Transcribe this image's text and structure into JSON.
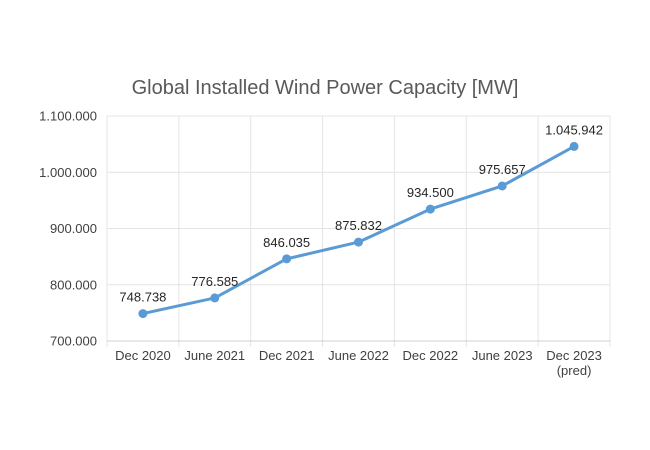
{
  "chart_data": {
    "type": "line",
    "title": "Global Installed Wind Power Capacity [MW]",
    "xlabel": "",
    "ylabel": "",
    "categories": [
      [
        "Dec 2020"
      ],
      [
        "June 2021"
      ],
      [
        "Dec 2021"
      ],
      [
        "June 2022"
      ],
      [
        "Dec 2022"
      ],
      [
        "June 2023"
      ],
      [
        "Dec 2023",
        "(pred)"
      ]
    ],
    "series": [
      {
        "name": "Global Installed Wind Power Capacity",
        "values": [
          748738,
          776585,
          846035,
          875832,
          934500,
          975657,
          1045942
        ],
        "labels": [
          "748.738",
          "776.585",
          "846.035",
          "875.832",
          "934.500",
          "975.657",
          "1.045.942"
        ]
      }
    ],
    "ylim": [
      700000,
      1100000
    ],
    "yticks": [
      {
        "value": 700000,
        "label": "700.000"
      },
      {
        "value": 800000,
        "label": "800.000"
      },
      {
        "value": 900000,
        "label": "900.000"
      },
      {
        "value": 1000000,
        "label": "1.000.000"
      },
      {
        "value": 1100000,
        "label": "1.100.000"
      }
    ],
    "grid": true,
    "line_color": "#5b9bd5"
  }
}
